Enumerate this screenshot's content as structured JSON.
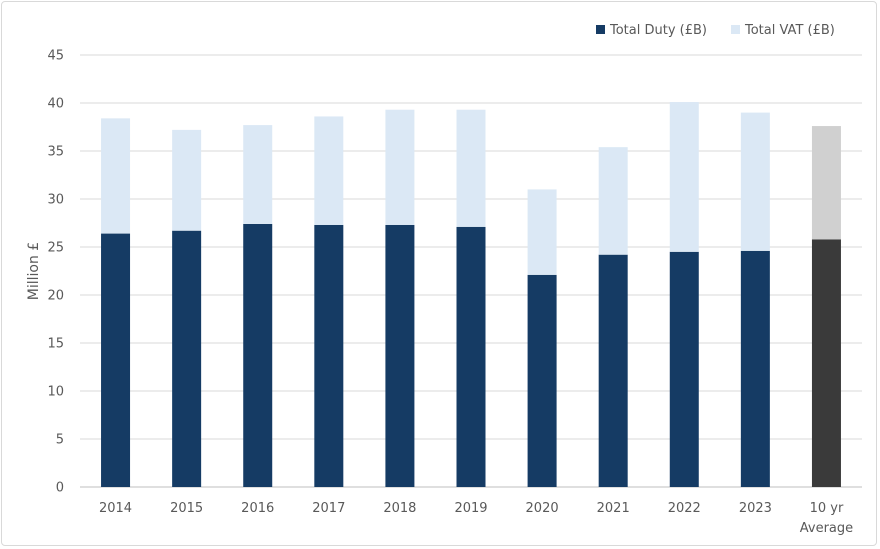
{
  "chart_data": {
    "type": "bar",
    "stacked": true,
    "title": "",
    "xlabel": "",
    "ylabel": "Million £",
    "ylim": [
      0,
      45
    ],
    "yticks": [
      0,
      5,
      10,
      15,
      20,
      25,
      30,
      35,
      40,
      45
    ],
    "grid": true,
    "legend_position": "top-right",
    "categories": [
      "2014",
      "2015",
      "2016",
      "2017",
      "2018",
      "2019",
      "2020",
      "2021",
      "2022",
      "2023",
      "10 yr Average"
    ],
    "category_lines": [
      [
        "2014"
      ],
      [
        "2015"
      ],
      [
        "2016"
      ],
      [
        "2017"
      ],
      [
        "2018"
      ],
      [
        "2019"
      ],
      [
        "2020"
      ],
      [
        "2021"
      ],
      [
        "2022"
      ],
      [
        "2023"
      ],
      [
        "10 yr",
        "Average"
      ]
    ],
    "series": [
      {
        "name": "Total Duty (£B)",
        "color": "#153b64",
        "highlight_color": "#3a3a3a",
        "values": [
          26.4,
          26.7,
          27.4,
          27.3,
          27.3,
          27.1,
          22.1,
          24.2,
          24.5,
          24.6,
          25.8
        ]
      },
      {
        "name": "Total VAT (£B)",
        "color": "#dbe8f5",
        "highlight_color": "#d0d0d0",
        "values": [
          12.0,
          10.5,
          10.3,
          11.3,
          12.0,
          12.2,
          8.9,
          11.2,
          15.6,
          14.4,
          11.8
        ]
      }
    ],
    "highlight_index": 10
  }
}
